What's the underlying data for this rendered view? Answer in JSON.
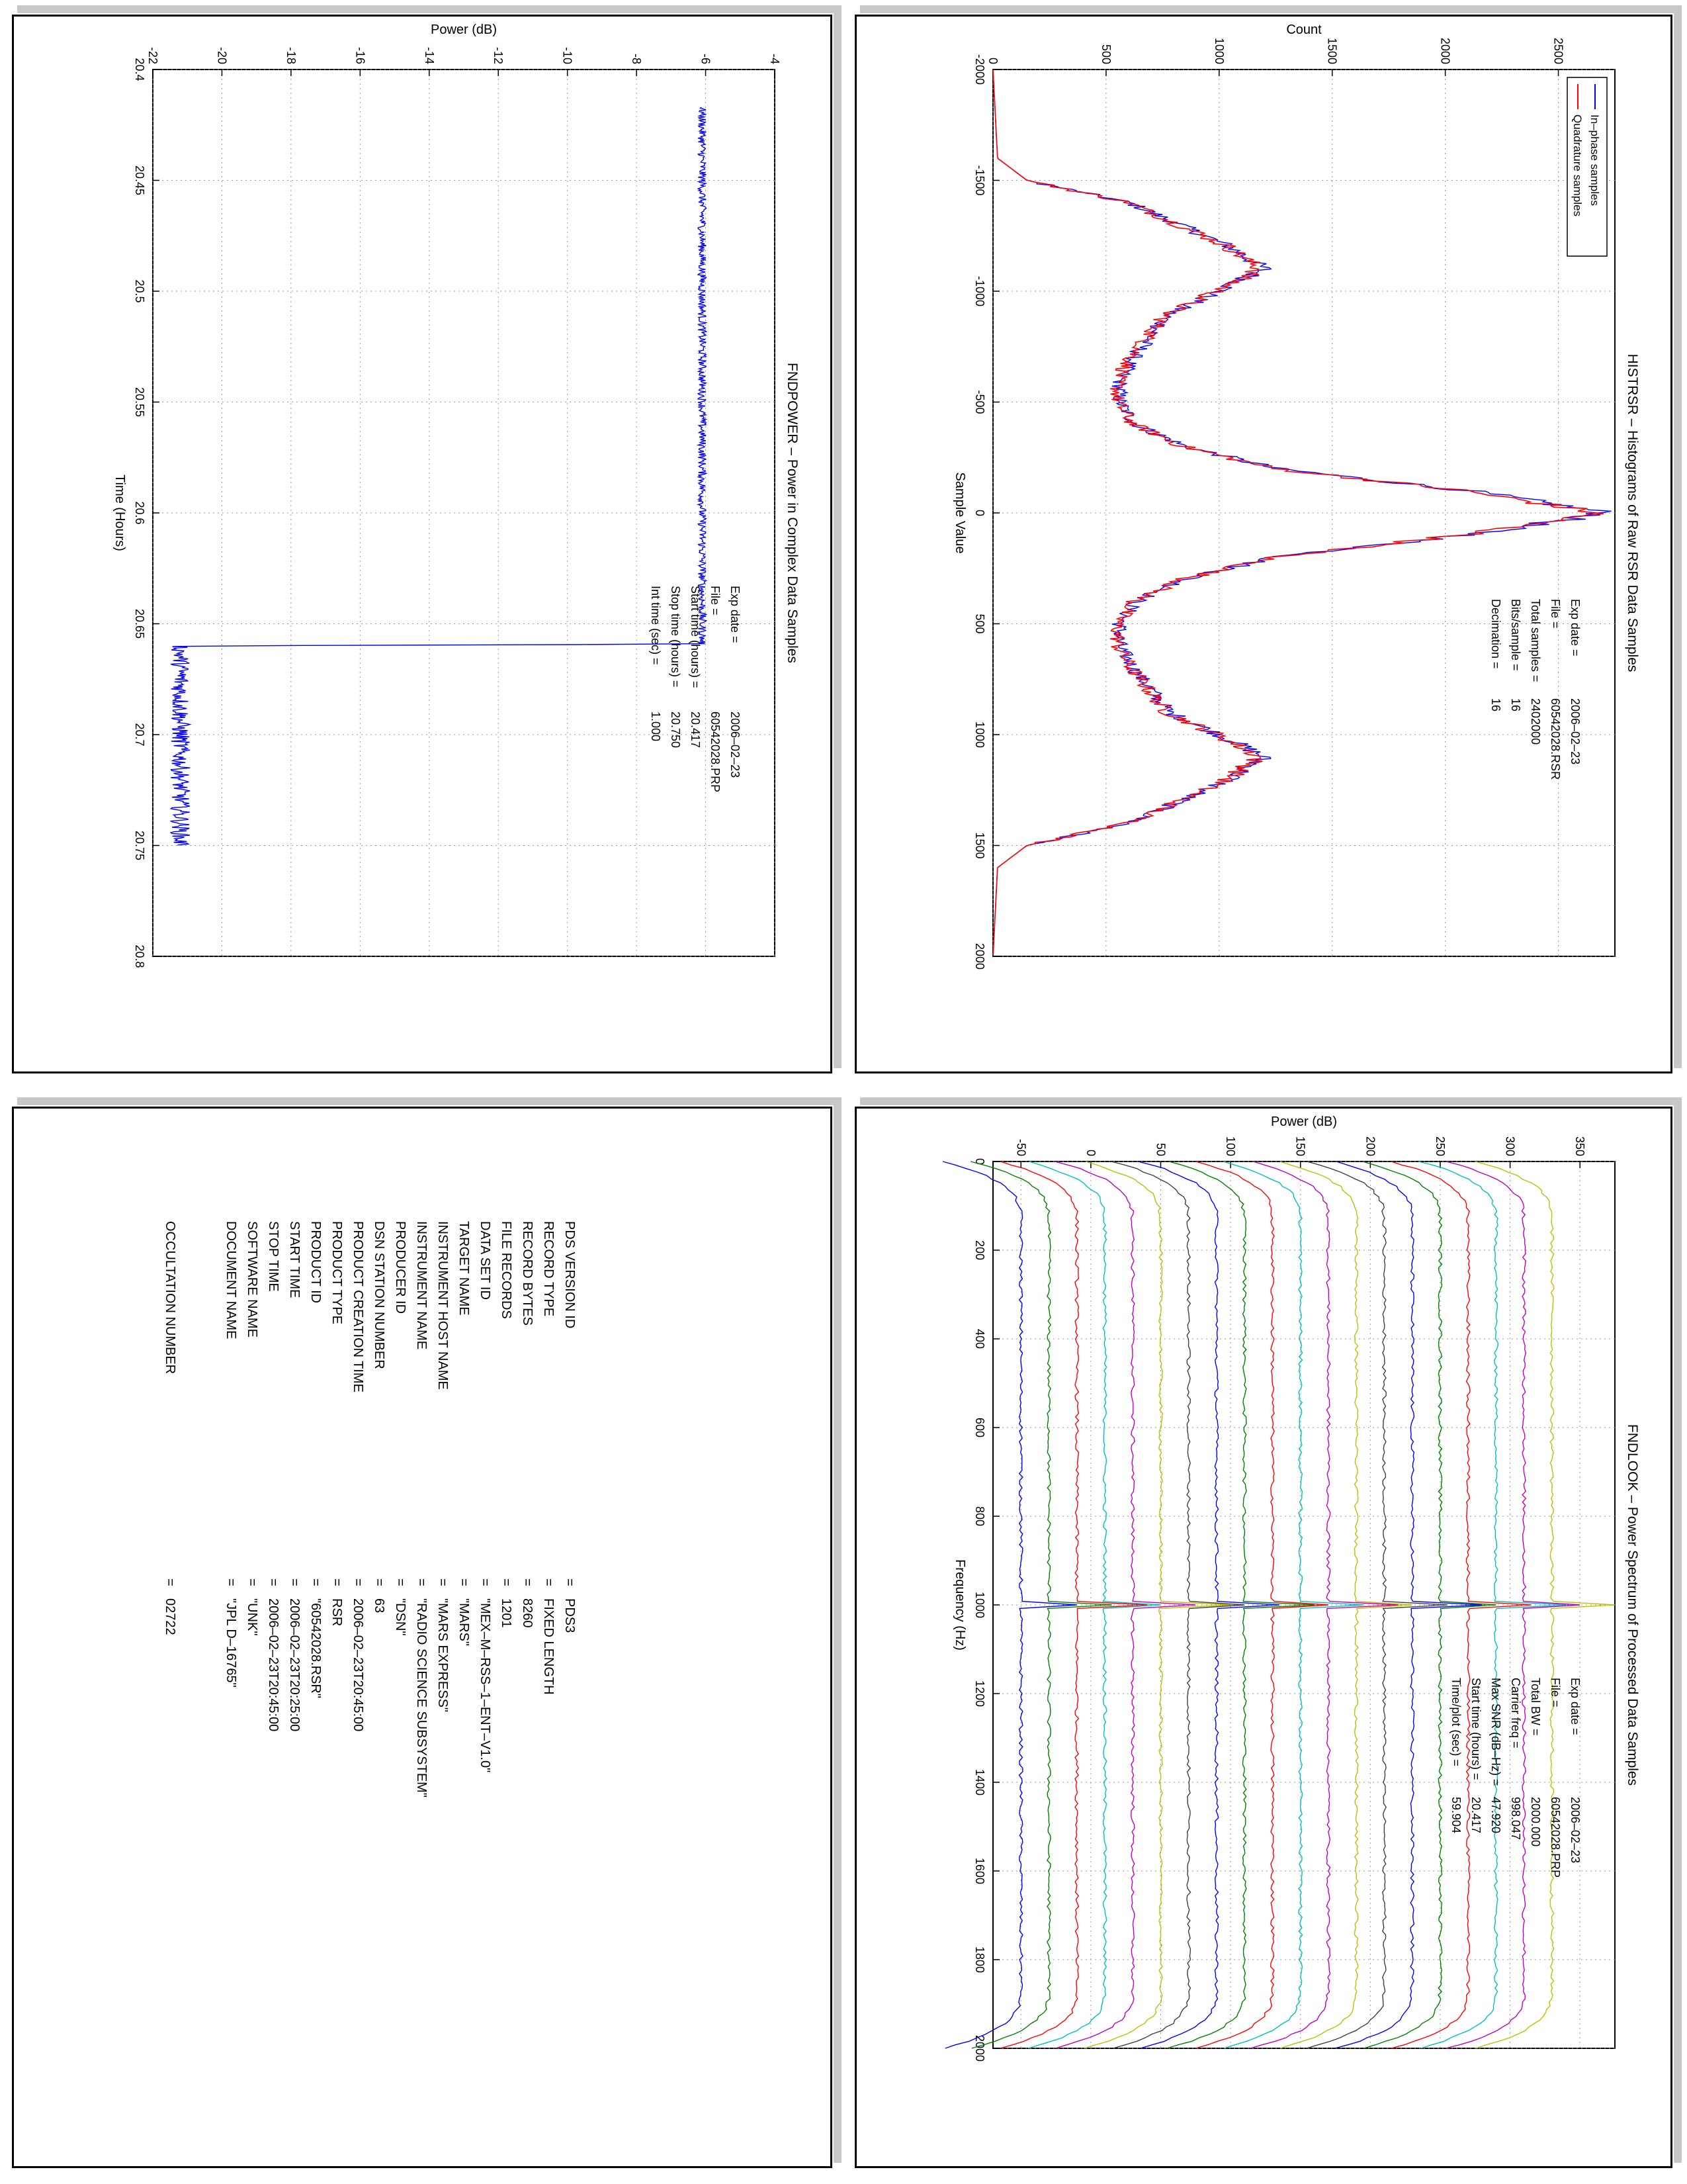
{
  "histrsr": {
    "chart_data": {
      "type": "line",
      "title": "HISTRSR – Histograms of Raw RSR Data Samples",
      "xlabel": "Sample Value",
      "ylabel": "Count",
      "xlim": [
        -2000,
        2000
      ],
      "ylim": [
        0,
        2750
      ],
      "x_ticks": [
        "-2000",
        "-1500",
        "-1000",
        "-500",
        "0",
        "500",
        "1000",
        "1500",
        "2000"
      ],
      "y_ticks": [
        "0",
        "500",
        "1000",
        "1500",
        "2000",
        "2500"
      ],
      "grid": true,
      "legend_position": "upper-left",
      "series": [
        {
          "name": "In–phase samples",
          "color": "#0000ff",
          "x": [
            -2000,
            -1600,
            -1500,
            -1400,
            -1200,
            -1100,
            -1000,
            -900,
            -700,
            -600,
            -500,
            -400,
            -300,
            -200,
            -100,
            0,
            100,
            200,
            300,
            400,
            500,
            600,
            700,
            900,
            1000,
            1100,
            1200,
            1400,
            1500,
            1600,
            2000
          ],
          "y": [
            0,
            20,
            150,
            600,
            1050,
            1200,
            1000,
            780,
            620,
            560,
            560,
            630,
            850,
            1250,
            2100,
            2720,
            2100,
            1250,
            850,
            630,
            560,
            560,
            620,
            780,
            1000,
            1200,
            1050,
            600,
            150,
            20,
            0
          ]
        },
        {
          "name": "Quadrature samples",
          "color": "#ff0000",
          "x": [
            -2000,
            -1600,
            -1500,
            -1400,
            -1200,
            -1100,
            -1000,
            -900,
            -700,
            -600,
            -500,
            -400,
            -300,
            -200,
            -100,
            0,
            100,
            200,
            300,
            400,
            500,
            600,
            700,
            900,
            1000,
            1100,
            1200,
            1400,
            1500,
            1600,
            2000
          ],
          "y": [
            0,
            20,
            150,
            600,
            1040,
            1180,
            990,
            770,
            610,
            550,
            550,
            620,
            840,
            1240,
            2080,
            2680,
            2080,
            1240,
            840,
            620,
            550,
            550,
            610,
            770,
            990,
            1180,
            1040,
            600,
            150,
            20,
            0
          ]
        }
      ]
    },
    "annotations": [
      {
        "label": "Exp date",
        "value": "2006–02–23"
      },
      {
        "label": "File",
        "value": "60542028.RSR"
      },
      {
        "label": "Total samples",
        "value": "2402000"
      },
      {
        "label": "Bits/sample",
        "value": "16"
      },
      {
        "label": "Decimation",
        "value": "16"
      }
    ]
  },
  "fndpower": {
    "chart_data": {
      "type": "line",
      "title": "FNDPOWER – Power in Complex Data Samples",
      "xlabel": "Time (Hours)",
      "ylabel": "Power (dB)",
      "xlim": [
        20.4,
        20.8
      ],
      "ylim": [
        -22,
        -4
      ],
      "x_ticks": [
        "20.4",
        "20.45",
        "20.5",
        "20.55",
        "20.6",
        "20.65",
        "20.7",
        "20.75",
        "20.8"
      ],
      "y_ticks": [
        "-22",
        "-20",
        "-18",
        "-16",
        "-14",
        "-12",
        "-10",
        "-8",
        "-6",
        "-4"
      ],
      "grid": true,
      "series": [
        {
          "name": "",
          "color": "#0000ff",
          "x": [
            20.417,
            20.45,
            20.5,
            20.55,
            20.6,
            20.6592,
            20.66,
            20.7,
            20.75
          ],
          "y": [
            -6.1,
            -6.1,
            -6.1,
            -6.1,
            -6.1,
            -6.1,
            -21.2,
            -21.2,
            -21.2
          ]
        }
      ]
    },
    "annotations": [
      {
        "label": "Exp date",
        "value": "2006–02–23"
      },
      {
        "label": "File",
        "value": "60542028.PRP"
      },
      {
        "label": "Start time (hours)",
        "value": "20.417"
      },
      {
        "label": "Stop time (hours)",
        "value": "20.750"
      },
      {
        "label": "Int time (sec)",
        "value": "1.000"
      }
    ]
  },
  "fndlook": {
    "chart_data": {
      "type": "line",
      "title": "FNDLOOK – Power Spectrum of Processed Data Samples",
      "xlabel": "Frequency (Hz)",
      "ylabel": "Power (dB)",
      "xlim": [
        0,
        2000
      ],
      "ylim": [
        -70,
        375
      ],
      "x_ticks": [
        "0",
        "200",
        "400",
        "600",
        "800",
        "1000",
        "1200",
        "1400",
        "1600",
        "1800",
        "2000"
      ],
      "y_ticks": [
        "-50",
        "0",
        "50",
        "100",
        "150",
        "200",
        "250",
        "300",
        "350"
      ],
      "grid": true,
      "series_offsets": [
        -50,
        -30,
        -10,
        10,
        30,
        50,
        70,
        90,
        110,
        130,
        150,
        170,
        190,
        210,
        230,
        250,
        270,
        290,
        310,
        330
      ],
      "series_colors": [
        "#0000ff",
        "#008000",
        "#ff0000",
        "#00bfbf",
        "#bf00bf",
        "#bfbf00",
        "#404040",
        "#0000ff",
        "#008000",
        "#ff0000",
        "#00bfbf",
        "#bf00bf",
        "#bfbf00",
        "#404040",
        "#0000ff",
        "#008000",
        "#ff0000",
        "#00bfbf",
        "#bf00bf",
        "#bfbf00"
      ],
      "carrier_hz": 998.047
    },
    "annotations": [
      {
        "label": "Exp date",
        "value": "2006–02–23"
      },
      {
        "label": "File",
        "value": "60542028.PRP"
      },
      {
        "label": "Total BW",
        "value": "2000.000"
      },
      {
        "label": "Carrier freq",
        "value": "998.047"
      },
      {
        "label": "Max SNR (dB–Hz)",
        "value": "47.920"
      },
      {
        "label": "Start time (hours)",
        "value": "20.417"
      },
      {
        "label": "Time/plot (sec)",
        "value": "59.904"
      }
    ]
  },
  "label_table": {
    "rows": [
      {
        "key": "PDS VERSION ID",
        "value": "PDS3"
      },
      {
        "key": "RECORD TYPE",
        "value": "FIXED LENGTH"
      },
      {
        "key": "RECORD BYTES",
        "value": "8260"
      },
      {
        "key": "FILE RECORDS",
        "value": "1201"
      },
      {
        "key": "DATA SET ID",
        "value": "\"MEX–M–RSS–1–ENT–V1.0\""
      },
      {
        "key": "TARGET NAME",
        "value": "\"MARS\""
      },
      {
        "key": "INSTRUMENT HOST NAME",
        "value": "\"MARS EXPRESS\""
      },
      {
        "key": "INSTRUMENT NAME",
        "value": "\"RADIO SCIENCE SUBSYSTEM\""
      },
      {
        "key": "PRODUCER ID",
        "value": "\"DSN\""
      },
      {
        "key": "DSN STATION NUMBER",
        "value": "63"
      },
      {
        "key": "PRODUCT CREATION TIME",
        "value": "2006–02–23T20:45:00"
      },
      {
        "key": "PRODUCT TYPE",
        "value": "RSR"
      },
      {
        "key": "PRODUCT ID",
        "value": "\"60542028.RSR\""
      },
      {
        "key": "START TIME",
        "value": "2006–02–23T20:25:00"
      },
      {
        "key": "STOP TIME",
        "value": "2006–02–23T20:45:00"
      },
      {
        "key": "SOFTWARE NAME",
        "value": "\"UNK\""
      },
      {
        "key": "DOCUMENT NAME",
        "value": "\"JPL D–16765\""
      }
    ],
    "occultation": {
      "key": "OCCULTATION NUMBER",
      "value": "02722"
    },
    "equals": "="
  }
}
